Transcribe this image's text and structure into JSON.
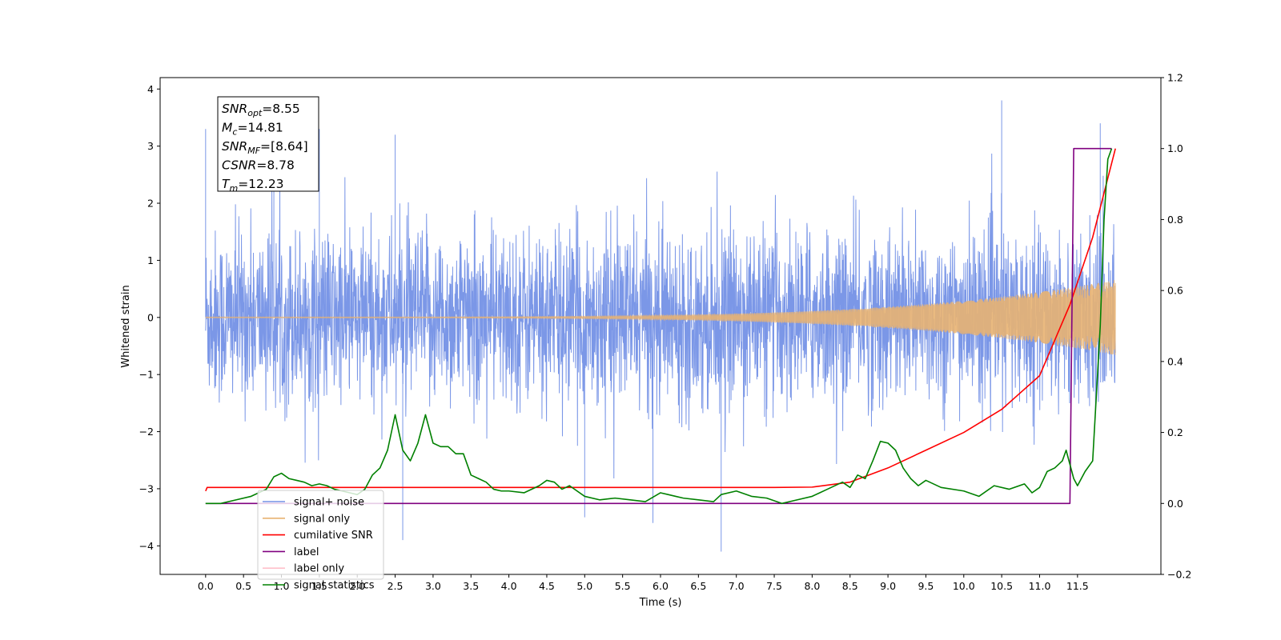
{
  "chart_data": {
    "type": "line",
    "title": "",
    "xlabel": "Time (s)",
    "ylabel": "Whitened strain",
    "xlim": [
      -0.6,
      12.6
    ],
    "ylim": [
      -4.5,
      4.2
    ],
    "y2lim": [
      -0.2,
      1.2
    ],
    "x_ticks": [
      "0.0",
      "0.5",
      "1.0",
      "1.5",
      "2.0",
      "2.5",
      "3.0",
      "3.5",
      "4.0",
      "4.5",
      "5.0",
      "5.5",
      "6.0",
      "6.5",
      "7.0",
      "7.5",
      "8.0",
      "8.5",
      "9.0",
      "9.5",
      "10.0",
      "10.5",
      "11.0",
      "11.5"
    ],
    "y_ticks": [
      "-4",
      "-3",
      "-2",
      "-1",
      "0",
      "1",
      "2",
      "3",
      "4"
    ],
    "y2_ticks": [
      "-0.2",
      "0.0",
      "0.2",
      "0.4",
      "0.6",
      "0.8",
      "1.0",
      "1.2"
    ],
    "grid": false,
    "legend_position": "lower-left",
    "annotation": {
      "lines": [
        {
          "var": "SNR",
          "sub": "opt",
          "value": "=8.55"
        },
        {
          "var": "M",
          "sub": "c",
          "value": "=14.81"
        },
        {
          "var": "SNR",
          "sub": "MF",
          "value": "=[8.64]"
        },
        {
          "var": "CSNR",
          "sub": "",
          "value": "=8.78"
        },
        {
          "var": "T",
          "sub": "m",
          "value": "=12.23"
        }
      ]
    },
    "series": [
      {
        "name": "signal+ noise",
        "color": "#7491e6",
        "axis": "left",
        "style": "noise",
        "x_range": [
          0.0,
          12.0
        ],
        "envelope_sigma": 0.75,
        "notable_peaks": [
          [
            0.0,
            3.3
          ],
          [
            0.9,
            3.3
          ],
          [
            1.5,
            3.3
          ],
          [
            2.5,
            3.2
          ],
          [
            10.5,
            3.8
          ],
          [
            11.8,
            3.4
          ],
          [
            6.8,
            -4.1
          ],
          [
            5.9,
            -3.6
          ],
          [
            5.0,
            -3.5
          ],
          [
            2.6,
            -3.9
          ]
        ]
      },
      {
        "name": "signal only",
        "color": "#e8b272",
        "axis": "left",
        "style": "chirp",
        "x_range": [
          0.0,
          12.0
        ],
        "amplitude_start": 0.0,
        "amplitude_end": 0.65
      },
      {
        "name": "cumilative SNR",
        "color": "#ff0000",
        "axis": "right",
        "x": [
          0.0,
          0.02,
          0.5,
          1.0,
          2.0,
          3.0,
          4.0,
          5.0,
          6.0,
          7.0,
          7.5,
          8.0,
          8.5,
          9.0,
          9.5,
          10.0,
          10.5,
          11.0,
          11.4,
          11.7,
          12.0
        ],
        "y": [
          0.035,
          0.045,
          0.045,
          0.045,
          0.045,
          0.045,
          0.045,
          0.045,
          0.045,
          0.045,
          0.045,
          0.046,
          0.06,
          0.1,
          0.15,
          0.2,
          0.265,
          0.36,
          0.56,
          0.75,
          1.0
        ]
      },
      {
        "name": "label",
        "color": "#800080",
        "axis": "right",
        "x": [
          0.0,
          11.4,
          11.45,
          11.95
        ],
        "y": [
          0.0,
          0.0,
          1.0,
          1.0
        ]
      },
      {
        "name": "label only",
        "color": "#ffc0cb",
        "axis": "right",
        "hidden_in_plot": true,
        "x": [],
        "y": []
      },
      {
        "name": "signal statistics",
        "color": "#008000",
        "axis": "right",
        "x": [
          0.0,
          0.2,
          0.4,
          0.6,
          0.8,
          0.9,
          1.0,
          1.1,
          1.2,
          1.3,
          1.4,
          1.5,
          1.6,
          1.7,
          1.8,
          1.9,
          2.0,
          2.1,
          2.2,
          2.3,
          2.4,
          2.5,
          2.55,
          2.6,
          2.7,
          2.8,
          2.9,
          3.0,
          3.1,
          3.2,
          3.3,
          3.4,
          3.5,
          3.6,
          3.7,
          3.8,
          3.9,
          4.0,
          4.2,
          4.4,
          4.5,
          4.6,
          4.7,
          4.8,
          5.0,
          5.2,
          5.4,
          5.6,
          5.8,
          6.0,
          6.1,
          6.2,
          6.3,
          6.5,
          6.7,
          6.8,
          7.0,
          7.2,
          7.4,
          7.6,
          7.8,
          8.0,
          8.1,
          8.2,
          8.4,
          8.5,
          8.6,
          8.7,
          8.8,
          8.9,
          9.0,
          9.1,
          9.2,
          9.3,
          9.4,
          9.5,
          9.7,
          10.0,
          10.2,
          10.4,
          10.6,
          10.8,
          10.9,
          11.0,
          11.1,
          11.2,
          11.3,
          11.35,
          11.45,
          11.5,
          11.6,
          11.7,
          11.8,
          11.85,
          11.9,
          11.95
        ],
        "y": [
          0.0,
          0.0,
          0.01,
          0.02,
          0.04,
          0.075,
          0.085,
          0.07,
          0.065,
          0.06,
          0.05,
          0.055,
          0.05,
          0.04,
          0.035,
          0.03,
          0.025,
          0.04,
          0.08,
          0.1,
          0.15,
          0.25,
          0.2,
          0.15,
          0.12,
          0.17,
          0.25,
          0.17,
          0.16,
          0.16,
          0.14,
          0.14,
          0.08,
          0.07,
          0.06,
          0.04,
          0.035,
          0.035,
          0.03,
          0.05,
          0.065,
          0.06,
          0.04,
          0.05,
          0.02,
          0.01,
          0.015,
          0.01,
          0.005,
          0.03,
          0.025,
          0.02,
          0.015,
          0.01,
          0.005,
          0.025,
          0.035,
          0.02,
          0.015,
          0.0,
          0.01,
          0.02,
          0.03,
          0.04,
          0.06,
          0.045,
          0.08,
          0.07,
          0.12,
          0.175,
          0.17,
          0.15,
          0.1,
          0.07,
          0.05,
          0.065,
          0.045,
          0.035,
          0.02,
          0.05,
          0.04,
          0.055,
          0.03,
          0.045,
          0.09,
          0.1,
          0.12,
          0.15,
          0.07,
          0.05,
          0.09,
          0.12,
          0.5,
          0.8,
          0.97,
          1.0
        ]
      }
    ]
  }
}
